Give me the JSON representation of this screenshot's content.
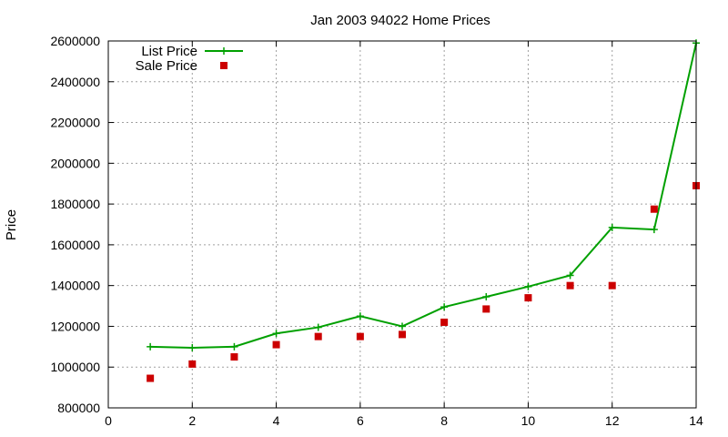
{
  "chart_data": {
    "type": "line",
    "title": "Jan 2003 94022 Home Prices",
    "xlabel": "",
    "ylabel": "Price",
    "xlim": [
      0,
      14
    ],
    "ylim": [
      800000,
      2600000
    ],
    "xticks": [
      0,
      2,
      4,
      6,
      8,
      10,
      12,
      14
    ],
    "yticks": [
      800000,
      1000000,
      1200000,
      1400000,
      1600000,
      1800000,
      2000000,
      2200000,
      2400000,
      2600000
    ],
    "grid": true,
    "legend_position": "top-left",
    "series": [
      {
        "name": "List Price",
        "style": "line-with-plus-markers",
        "color": "#00a000",
        "x": [
          1,
          2,
          3,
          4,
          5,
          6,
          7,
          8,
          9,
          10,
          11,
          12,
          13,
          14
        ],
        "y": [
          1100000,
          1095000,
          1100000,
          1165000,
          1195000,
          1250000,
          1200000,
          1295000,
          1345000,
          1395000,
          1450000,
          1685000,
          1675000,
          2590000
        ]
      },
      {
        "name": "Sale Price",
        "style": "square-markers",
        "color": "#cc0000",
        "x": [
          1,
          2,
          3,
          4,
          5,
          6,
          7,
          8,
          9,
          10,
          11,
          12,
          13,
          14
        ],
        "y": [
          945000,
          1015000,
          1050000,
          1110000,
          1150000,
          1150000,
          1160000,
          1220000,
          1285000,
          1340000,
          1400000,
          1400000,
          1775000,
          1890000
        ]
      }
    ]
  }
}
